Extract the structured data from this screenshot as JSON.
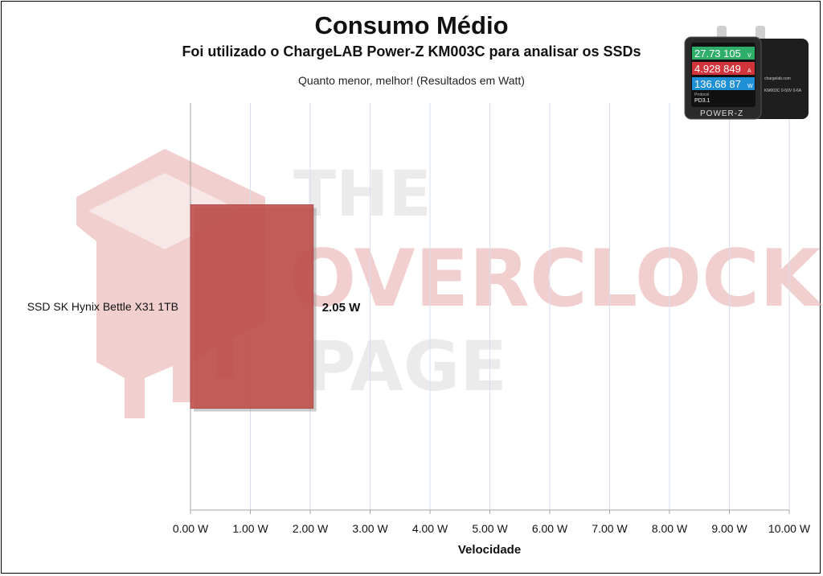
{
  "chart_data": {
    "type": "bar",
    "orientation": "horizontal",
    "title": "Consumo Médio",
    "subtitle": "Foi utilizado o ChargeLAB Power-Z KM003C para analisar os SSDs",
    "note": "Quanto menor, melhor! (Resultados em Watt)",
    "xlabel": "Velocidade",
    "ylabel": "",
    "categories": [
      "SSD SK Hynix Bettle  X31 1TB"
    ],
    "values": [
      2.05
    ],
    "data_labels": [
      "2.05 W"
    ],
    "xlim": [
      0,
      10
    ],
    "x_ticks": [
      0,
      1,
      2,
      3,
      4,
      5,
      6,
      7,
      8,
      9,
      10
    ],
    "x_tick_labels": [
      "0.00 W",
      "1.00 W",
      "2.00 W",
      "3.00 W",
      "4.00 W",
      "5.00 W",
      "6.00 W",
      "7.00 W",
      "8.00 W",
      "9.00 W",
      "10.00 W"
    ],
    "grid": true,
    "bar_color": "#c0504d"
  },
  "device": {
    "readings": [
      "27.73 105",
      "4.928 849",
      "136.68 87"
    ],
    "units": [
      "V",
      "A",
      "W"
    ],
    "protocol_label": "Protocol",
    "protocol": "PD3.1",
    "brand": "POWER-Z",
    "side_url": "chargelab.com",
    "side_model": "KM003C 0-50V 0-6A",
    "colors": [
      "#2fae6a",
      "#d2343b",
      "#1f8fd6"
    ]
  },
  "watermark": {
    "lines": [
      "THE",
      "OVERCLOCK",
      "PAGE"
    ],
    "color": "#e8a8a8"
  }
}
